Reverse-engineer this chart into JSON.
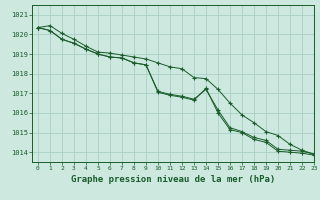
{
  "bg_color": "#cce8df",
  "grid_color": "#aacfc4",
  "line_color": "#1a5c2a",
  "title": "Graphe pression niveau de la mer (hPa)",
  "title_fontsize": 6.5,
  "xlim": [
    -0.5,
    23
  ],
  "ylim": [
    1013.5,
    1021.5
  ],
  "yticks": [
    1014,
    1015,
    1016,
    1017,
    1018,
    1019,
    1020,
    1021
  ],
  "xticks": [
    0,
    1,
    2,
    3,
    4,
    5,
    6,
    7,
    8,
    9,
    10,
    11,
    12,
    13,
    14,
    15,
    16,
    17,
    18,
    19,
    20,
    21,
    22,
    23
  ],
  "series": [
    [
      1020.35,
      1020.45,
      1020.05,
      1019.75,
      1019.4,
      1019.1,
      1019.05,
      1018.95,
      1018.85,
      1018.75,
      1018.55,
      1018.35,
      1018.25,
      1017.8,
      1017.75,
      1017.2,
      1016.5,
      1015.9,
      1015.5,
      1015.05,
      1014.85,
      1014.4,
      1014.1,
      1013.9
    ],
    [
      1020.35,
      1020.2,
      1019.75,
      1019.55,
      1019.25,
      1019.0,
      1018.85,
      1018.8,
      1018.55,
      1018.45,
      1017.1,
      1016.95,
      1016.85,
      1016.7,
      1017.2,
      1016.15,
      1015.25,
      1015.05,
      1014.75,
      1014.6,
      1014.15,
      1014.1,
      1014.05,
      1013.9
    ],
    [
      1020.35,
      1020.2,
      1019.75,
      1019.55,
      1019.25,
      1019.0,
      1018.85,
      1018.8,
      1018.55,
      1018.45,
      1017.05,
      1016.9,
      1016.8,
      1016.65,
      1017.25,
      1016.0,
      1015.15,
      1015.0,
      1014.65,
      1014.5,
      1014.05,
      1014.0,
      1013.95,
      1013.85
    ]
  ]
}
